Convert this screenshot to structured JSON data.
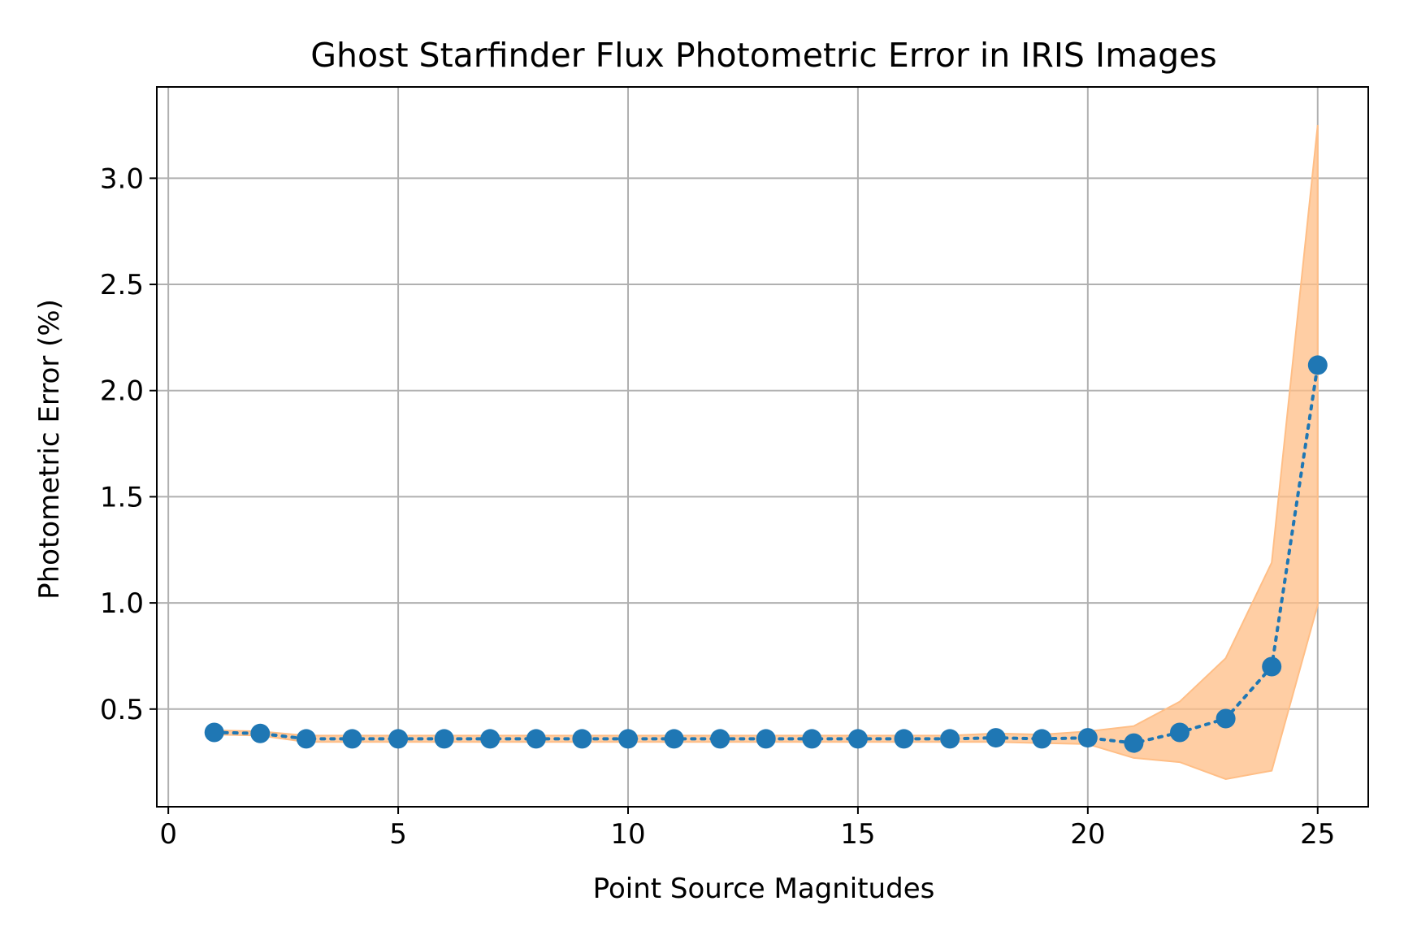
{
  "chart_data": {
    "type": "line",
    "title": "Ghost Starfinder Flux Photometric Error in IRIS Images",
    "xlabel": "Point Source Magnitudes",
    "ylabel": "Photometric Error (%)",
    "xlim": [
      -0.25,
      26.1
    ],
    "ylim": [
      0.04,
      3.43
    ],
    "grid": true,
    "x_ticks": [
      0,
      5,
      10,
      15,
      20,
      25
    ],
    "x_tick_labels": [
      "0",
      "5",
      "10",
      "15",
      "20",
      "25"
    ],
    "y_ticks": [
      0.5,
      1.0,
      1.5,
      2.0,
      2.5,
      3.0
    ],
    "y_tick_labels": [
      "0.5",
      "1.0",
      "1.5",
      "2.0",
      "2.5",
      "3.0"
    ],
    "series": [
      {
        "x": [
          1,
          2,
          3,
          4,
          5,
          6,
          7,
          8,
          9,
          10,
          11,
          12,
          13,
          14,
          15,
          16,
          17,
          18,
          19,
          20,
          21,
          22,
          23,
          24,
          25
        ],
        "values": [
          0.39,
          0.385,
          0.36,
          0.36,
          0.36,
          0.36,
          0.36,
          0.36,
          0.36,
          0.36,
          0.36,
          0.36,
          0.36,
          0.36,
          0.36,
          0.36,
          0.36,
          0.365,
          0.36,
          0.365,
          0.34,
          0.39,
          0.455,
          0.7,
          2.12
        ],
        "lower": [
          0.38,
          0.375,
          0.345,
          0.345,
          0.345,
          0.345,
          0.345,
          0.345,
          0.345,
          0.345,
          0.345,
          0.345,
          0.345,
          0.345,
          0.345,
          0.345,
          0.345,
          0.345,
          0.34,
          0.335,
          0.27,
          0.25,
          0.17,
          0.21,
          0.99
        ],
        "upper": [
          0.4,
          0.395,
          0.375,
          0.375,
          0.375,
          0.375,
          0.375,
          0.375,
          0.375,
          0.375,
          0.375,
          0.375,
          0.375,
          0.375,
          0.375,
          0.375,
          0.375,
          0.385,
          0.38,
          0.395,
          0.42,
          0.535,
          0.74,
          1.19,
          3.25
        ],
        "color": "#1f77b4",
        "band_color": "#ffbe86",
        "line_style": "dotted",
        "marker": "circle"
      }
    ]
  }
}
